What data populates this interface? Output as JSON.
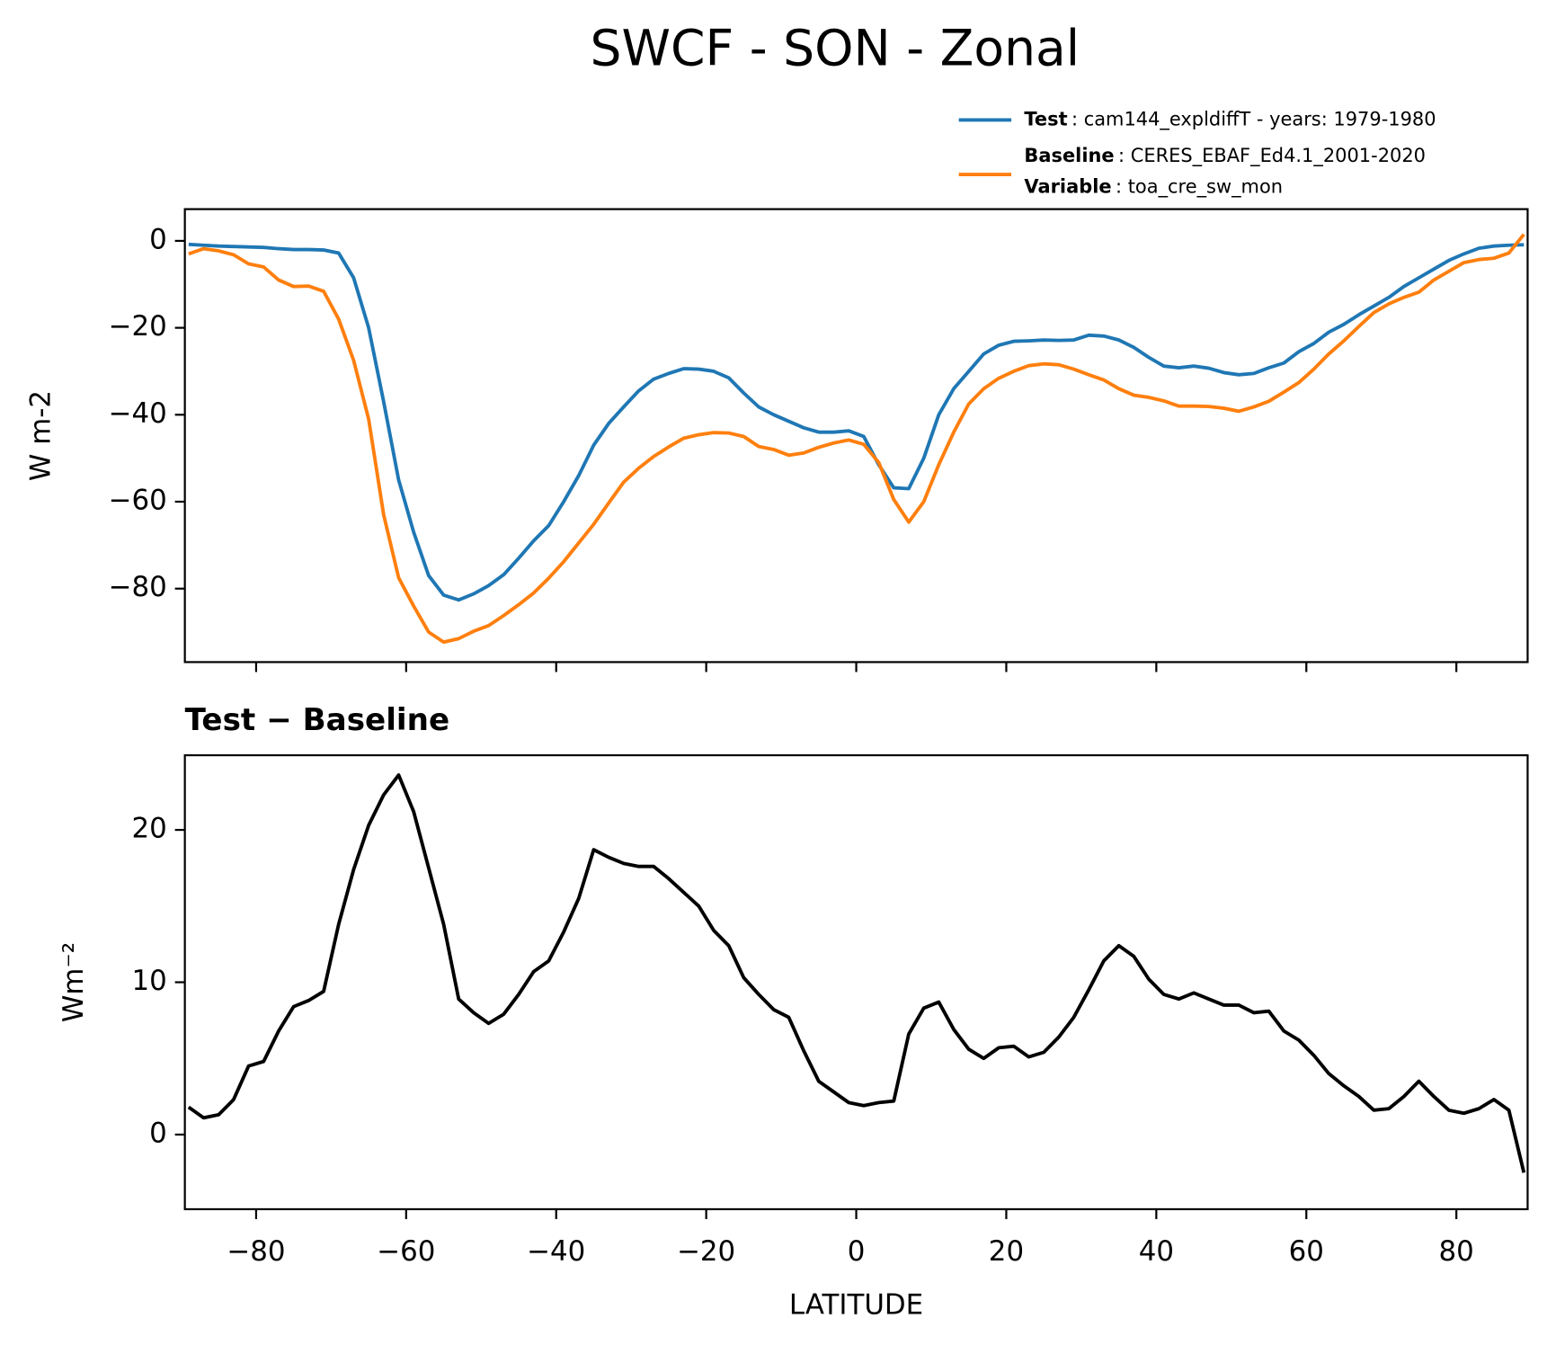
{
  "chart_data": [
    {
      "type": "line",
      "title": "SWCF - SON - Zonal",
      "ylabel": "W m-2",
      "show_xtick_labels": false,
      "x": [
        -89,
        -87,
        -85,
        -83,
        -81,
        -79,
        -77,
        -75,
        -73,
        -71,
        -69,
        -67,
        -65,
        -63,
        -61,
        -59,
        -57,
        -55,
        -53,
        -51,
        -49,
        -47,
        -45,
        -43,
        -41,
        -39,
        -37,
        -35,
        -33,
        -31,
        -29,
        -27,
        -25,
        -23,
        -21,
        -19,
        -17,
        -15,
        -13,
        -11,
        -9,
        -7,
        -5,
        -3,
        -1,
        1,
        3,
        5,
        7,
        9,
        11,
        13,
        15,
        17,
        19,
        21,
        23,
        25,
        27,
        29,
        31,
        33,
        35,
        37,
        39,
        41,
        43,
        45,
        47,
        49,
        51,
        53,
        55,
        57,
        59,
        61,
        63,
        65,
        67,
        69,
        71,
        73,
        75,
        77,
        79,
        81,
        83,
        85,
        87,
        89
      ],
      "series": [
        {
          "name": "Test",
          "legend_detail": ": cam144_expldiffT - years: 1979-1980",
          "color": "#1f77b4",
          "values": [
            -0.8,
            -1,
            -1.2,
            -1.3,
            -1.4,
            -1.5,
            -1.8,
            -2,
            -2,
            -2.1,
            -2.8,
            -8.5,
            -20,
            -37,
            -55,
            -67,
            -77,
            -81.5,
            -82.6,
            -81.2,
            -79.3,
            -76.8,
            -73,
            -69,
            -65.5,
            -60,
            -54,
            -47,
            -42,
            -38.2,
            -34.5,
            -31.8,
            -30.5,
            -29.4,
            -29.5,
            -30,
            -31.5,
            -35,
            -38.2,
            -40,
            -41.5,
            -43,
            -44,
            -44,
            -43.7,
            -45,
            -51.5,
            -56.8,
            -57,
            -50,
            -40,
            -34,
            -30,
            -26,
            -24,
            -23.1,
            -23,
            -22.8,
            -22.9,
            -22.8,
            -21.7,
            -21.9,
            -22.8,
            -24.5,
            -26.8,
            -28.8,
            -29.2,
            -28.8,
            -29.3,
            -30.3,
            -30.8,
            -30.5,
            -29.2,
            -28.1,
            -25.5,
            -23.6,
            -21,
            -19.2,
            -17,
            -15,
            -13,
            -10.5,
            -8.5,
            -6.5,
            -4.5,
            -3,
            -1.7,
            -1.2,
            -1,
            -0.9
          ]
        },
        {
          "name": "Baseline",
          "legend_detail": ": CERES_EBAF_Ed4.1_2001-2020",
          "color": "#ff7f0e",
          "values": [
            -3,
            -1.8,
            -2.3,
            -3.2,
            -5.3,
            -6,
            -9,
            -10.5,
            -10.4,
            -11.6,
            -18,
            -27.5,
            -41,
            -63,
            -77.5,
            -84,
            -90,
            -92.3,
            -91.5,
            -89.8,
            -88.5,
            -86.2,
            -83.7,
            -81,
            -77.6,
            -73.8,
            -69.5,
            -65.2,
            -60.3,
            -55.5,
            -52.3,
            -49.6,
            -47.4,
            -45.4,
            -44.6,
            -44.1,
            -44.2,
            -45,
            -47.3,
            -48,
            -49.3,
            -48.8,
            -47.5,
            -46.5,
            -45.8,
            -46.8,
            -51,
            -59.5,
            -64.7,
            -60,
            -51.5,
            -44,
            -37.5,
            -34,
            -31.6,
            -30,
            -28.7,
            -28.3,
            -28.5,
            -29.5,
            -30.8,
            -32,
            -34,
            -35.5,
            -36,
            -36.8,
            -38,
            -38,
            -38.1,
            -38.5,
            -39.2,
            -38.2,
            -36.9,
            -34.8,
            -32.6,
            -29.5,
            -26,
            -23,
            -19.7,
            -16.5,
            -14.5,
            -13,
            -11.8,
            -9,
            -7,
            -5,
            -4.3,
            -4,
            -2.8,
            1.5
          ]
        }
      ],
      "legend_extra": {
        "name": "Variable",
        "legend_detail": ": toa_cre_sw_mon"
      },
      "xlim": [
        -89.5,
        89.5
      ],
      "xticks": [
        -80,
        -60,
        -40,
        -20,
        0,
        20,
        40,
        60,
        80
      ],
      "ylim": [
        -96.9,
        7.3
      ],
      "yticks": [
        {
          "value": -80,
          "label": "−80"
        },
        {
          "value": -60,
          "label": "−60"
        },
        {
          "value": -40,
          "label": "−40"
        },
        {
          "value": -20,
          "label": "−20"
        },
        0
      ]
    },
    {
      "type": "line",
      "title": "Test − Baseline",
      "ylabel": "Wm⁻²",
      "xlabel": "LATITUDE",
      "show_xtick_labels": true,
      "x": [
        -89,
        -87,
        -85,
        -83,
        -81,
        -79,
        -77,
        -75,
        -73,
        -71,
        -69,
        -67,
        -65,
        -63,
        -61,
        -59,
        -57,
        -55,
        -53,
        -51,
        -49,
        -47,
        -45,
        -43,
        -41,
        -39,
        -37,
        -35,
        -33,
        -31,
        -29,
        -27,
        -25,
        -23,
        -21,
        -19,
        -17,
        -15,
        -13,
        -11,
        -9,
        -7,
        -5,
        -3,
        -1,
        1,
        3,
        5,
        7,
        9,
        11,
        13,
        15,
        17,
        19,
        21,
        23,
        25,
        27,
        29,
        31,
        33,
        35,
        37,
        39,
        41,
        43,
        45,
        47,
        49,
        51,
        53,
        55,
        57,
        59,
        61,
        63,
        65,
        67,
        69,
        71,
        73,
        75,
        77,
        79,
        81,
        83,
        85,
        87,
        89
      ],
      "series": [
        {
          "color": "#000000",
          "values": [
            1.8,
            1.1,
            1.3,
            2.3,
            4.5,
            4.8,
            6.8,
            8.4,
            8.8,
            9.4,
            13.8,
            17.4,
            20.3,
            22.3,
            23.6,
            21.2,
            17.5,
            13.8,
            8.9,
            8,
            7.3,
            7.9,
            9.2,
            10.7,
            11.4,
            13.3,
            15.5,
            18.7,
            18.2,
            17.8,
            17.6,
            17.6,
            16.8,
            15.9,
            15,
            13.4,
            12.4,
            10.3,
            9.2,
            8.2,
            7.7,
            5.5,
            3.5,
            2.8,
            2.1,
            1.9,
            2.1,
            2.2,
            6.6,
            8.3,
            8.7,
            6.9,
            5.6,
            5,
            5.7,
            5.8,
            5.1,
            5.4,
            6.4,
            7.7,
            9.5,
            11.4,
            12.4,
            11.7,
            10.2,
            9.2,
            8.9,
            9.3,
            8.9,
            8.5,
            8.5,
            8,
            8.1,
            6.8,
            6.2,
            5.2,
            4,
            3.2,
            2.5,
            1.6,
            1.7,
            2.5,
            3.5,
            2.5,
            1.6,
            1.4,
            1.7,
            2.3,
            1.6,
            -2.5
          ]
        }
      ],
      "xlim": [
        -89.5,
        89.5
      ],
      "xticks": [
        {
          "value": -80,
          "label": "−80"
        },
        {
          "value": -60,
          "label": "−60"
        },
        {
          "value": -40,
          "label": "−40"
        },
        {
          "value": -20,
          "label": "−20"
        },
        0,
        20,
        40,
        60,
        80
      ],
      "ylim": [
        -4.9,
        24.9
      ],
      "yticks": [
        0,
        10,
        20
      ]
    }
  ]
}
